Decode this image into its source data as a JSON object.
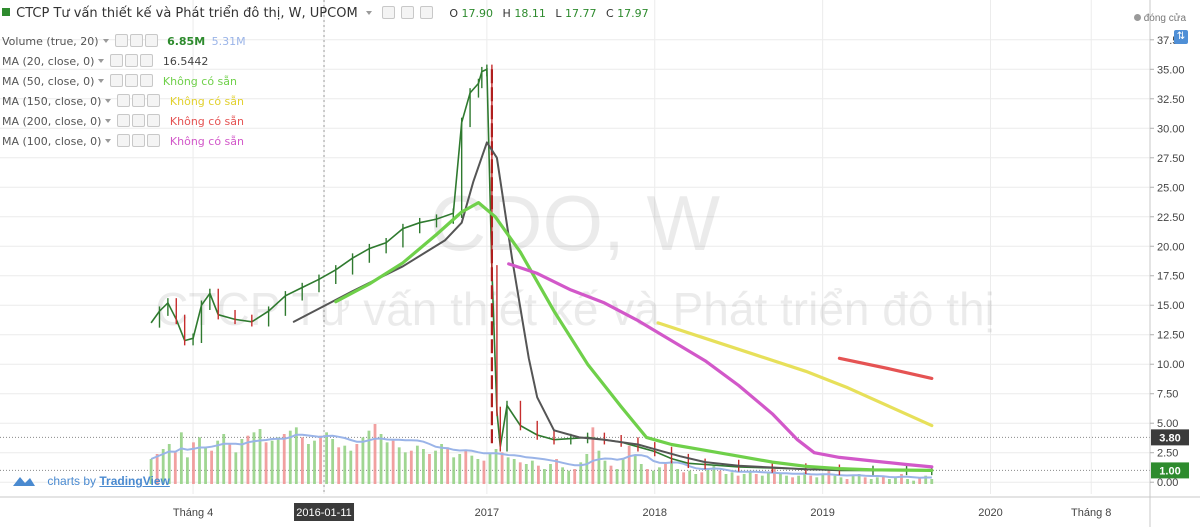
{
  "header": {
    "title": "CTCP Tư vấn thiết kế và Phát triển đô thị, W, UPCOM",
    "ohlc": [
      {
        "label": "O",
        "value": "17.90"
      },
      {
        "label": "H",
        "value": "18.11"
      },
      {
        "label": "L",
        "value": "17.77"
      },
      {
        "label": "C",
        "value": "17.97"
      }
    ],
    "status": "đóng cửa"
  },
  "legend": [
    {
      "name": "Volume (true, 20)",
      "value": "6.85M",
      "value2": "5.31M",
      "color": "#2e8b2e",
      "color2": "#9ab4e8"
    },
    {
      "name": "MA (20, close, 0)",
      "value": "16.5442",
      "color": "#444444"
    },
    {
      "name": "MA (50, close, 0)",
      "value": "Không có sẵn",
      "color": "#6fd04a"
    },
    {
      "name": "MA (150, close, 0)",
      "value": "Không có sẵn",
      "color": "#e7e05a"
    },
    {
      "name": "MA (200, close, 0)",
      "value": "Không có sẵn",
      "color": "#e55353"
    },
    {
      "name": "MA (100, close, 0)",
      "value": "Không có sẵn",
      "color": "#d258c9"
    }
  ],
  "watermark": {
    "symbol": "CDO, W",
    "name": "CTCP Tư vấn thiết kế và Phát triển đô thị"
  },
  "brand": {
    "prefix": "charts by",
    "link": "TradingView"
  },
  "chart_data": {
    "type": "line",
    "title": "CTCP Tư vấn thiết kế và Phát triển đô thị, W, UPCOM",
    "y_ticks": [
      "37.50",
      "35.00",
      "32.50",
      "30.00",
      "27.50",
      "25.00",
      "22.50",
      "20.00",
      "17.50",
      "15.00",
      "12.50",
      "10.00",
      "7.50",
      "5.00",
      "2.50",
      "0.00"
    ],
    "ylim": [
      -1.0,
      38.5
    ],
    "x_ticks": [
      {
        "label": "Tháng 4",
        "t": 0.25
      },
      {
        "label": "2016-01-11",
        "t": 1.03
      },
      {
        "label": "2017",
        "t": 2.0
      },
      {
        "label": "2018",
        "t": 3.0
      },
      {
        "label": "2019",
        "t": 4.0
      },
      {
        "label": "2020",
        "t": 5.0
      },
      {
        "label": "Tháng 8",
        "t": 5.6
      }
    ],
    "x_highlight": "2016-01-11",
    "xlim": [
      -0.9,
      5.95
    ],
    "price_markers": [
      {
        "label": "3.80",
        "value": 3.8
      },
      {
        "label": "1.00",
        "value": 1.0
      }
    ],
    "price_path": [
      [
        0.0,
        13.5
      ],
      [
        0.05,
        14.5
      ],
      [
        0.1,
        15.2
      ],
      [
        0.15,
        13.8
      ],
      [
        0.2,
        12.0
      ],
      [
        0.25,
        12.2
      ],
      [
        0.3,
        15.0
      ],
      [
        0.35,
        16.0
      ],
      [
        0.4,
        14.2
      ],
      [
        0.5,
        13.8
      ],
      [
        0.6,
        13.6
      ],
      [
        0.7,
        14.5
      ],
      [
        0.8,
        15.8
      ],
      [
        0.9,
        16.5
      ],
      [
        1.0,
        17.2
      ],
      [
        1.1,
        18.0
      ],
      [
        1.2,
        19.0
      ],
      [
        1.3,
        19.8
      ],
      [
        1.4,
        20.3
      ],
      [
        1.5,
        21.5
      ],
      [
        1.6,
        22.0
      ],
      [
        1.7,
        22.3
      ],
      [
        1.8,
        22.8
      ],
      [
        1.85,
        30.5
      ],
      [
        1.9,
        33.0
      ],
      [
        1.95,
        33.8
      ],
      [
        1.97,
        34.8
      ],
      [
        2.0,
        35.0
      ],
      [
        2.03,
        18.0
      ],
      [
        2.06,
        6.0
      ],
      [
        2.08,
        3.0
      ],
      [
        2.12,
        6.5
      ],
      [
        2.2,
        4.8
      ],
      [
        2.3,
        4.0
      ],
      [
        2.4,
        3.6
      ],
      [
        2.5,
        3.7
      ],
      [
        2.6,
        3.8
      ],
      [
        2.7,
        3.6
      ],
      [
        2.8,
        3.4
      ],
      [
        2.9,
        3.0
      ],
      [
        3.0,
        2.6
      ],
      [
        3.1,
        2.0
      ],
      [
        3.2,
        1.6
      ],
      [
        3.3,
        1.5
      ],
      [
        3.5,
        1.3
      ],
      [
        3.7,
        1.2
      ],
      [
        3.9,
        1.1
      ],
      [
        4.1,
        1.0
      ],
      [
        4.3,
        1.0
      ],
      [
        4.5,
        1.0
      ],
      [
        4.65,
        1.0
      ]
    ],
    "volume_values": [
      1.5,
      1.8,
      2.1,
      2.4,
      1.9,
      3.1,
      1.6,
      2.5,
      2.8,
      2.2,
      2.0,
      2.6,
      3.0,
      2.4,
      1.9,
      2.7,
      2.9,
      3.1,
      3.3,
      2.5,
      2.6,
      2.8,
      3.0,
      3.2,
      3.4,
      2.8,
      2.4,
      2.6,
      2.9,
      3.1,
      2.7,
      2.2,
      2.3,
      2.0,
      2.4,
      2.8,
      3.2,
      3.6,
      3.0,
      2.5,
      2.6,
      2.2,
      1.9,
      2.0,
      2.3,
      2.1,
      1.8,
      2.0,
      2.4,
      2.2,
      1.6,
      1.8,
      2.0,
      1.7,
      1.5,
      1.4,
      1.8,
      2.1,
      1.9,
      1.6,
      1.5,
      1.3,
      1.2,
      1.4,
      1.1,
      0.9,
      1.2,
      1.5,
      1.0,
      0.8,
      0.9,
      1.3,
      1.8,
      3.4,
      2.0,
      1.4,
      1.1,
      0.9,
      1.5,
      2.3,
      1.7,
      1.2,
      0.9,
      0.8,
      1.0,
      1.2,
      1.4,
      0.9,
      0.7,
      0.8,
      0.6,
      0.7,
      0.9,
      1.1,
      0.8,
      0.6,
      0.7,
      0.5,
      0.6,
      0.8,
      0.6,
      0.5,
      0.7,
      0.9,
      0.6,
      0.5,
      0.4,
      0.5,
      0.7,
      0.5,
      0.4,
      0.6,
      0.8,
      0.5,
      0.4,
      0.3,
      0.5,
      0.6,
      0.4,
      0.3,
      0.4,
      0.5,
      0.3,
      0.4,
      0.6,
      0.3,
      0.2,
      0.4,
      0.5,
      0.3
    ],
    "series": [
      {
        "name": "MA (20, close, 0)",
        "color": "#555555",
        "values": [
          [
            0.85,
            13.6
          ],
          [
            1.2,
            16.2
          ],
          [
            1.5,
            18.3
          ],
          [
            1.75,
            20.5
          ],
          [
            1.85,
            22.0
          ],
          [
            1.92,
            25.5
          ],
          [
            2.0,
            28.8
          ],
          [
            2.06,
            27.5
          ],
          [
            2.15,
            19.0
          ],
          [
            2.25,
            10.5
          ],
          [
            2.3,
            7.2
          ],
          [
            2.4,
            4.4
          ],
          [
            2.55,
            3.8
          ],
          [
            2.7,
            3.6
          ],
          [
            2.9,
            3.2
          ],
          [
            3.0,
            2.8
          ],
          [
            3.15,
            2.2
          ],
          [
            3.3,
            1.7
          ],
          [
            3.5,
            1.4
          ],
          [
            3.7,
            1.25
          ],
          [
            3.9,
            1.1
          ],
          [
            4.1,
            1.05
          ],
          [
            4.4,
            1.0
          ],
          [
            4.65,
            1.0
          ]
        ]
      },
      {
        "name": "MA (50, close, 0)",
        "color": "#6fd04a",
        "values": [
          [
            1.1,
            15.3
          ],
          [
            1.3,
            16.8
          ],
          [
            1.5,
            18.6
          ],
          [
            1.7,
            21.0
          ],
          [
            1.85,
            22.9
          ],
          [
            1.95,
            23.7
          ],
          [
            2.05,
            22.5
          ],
          [
            2.2,
            19.5
          ],
          [
            2.4,
            14.5
          ],
          [
            2.6,
            10.0
          ],
          [
            2.8,
            6.4
          ],
          [
            2.95,
            3.8
          ],
          [
            3.1,
            3.2
          ],
          [
            3.3,
            2.7
          ],
          [
            3.5,
            2.2
          ],
          [
            3.7,
            1.7
          ],
          [
            3.9,
            1.35
          ],
          [
            4.1,
            1.15
          ],
          [
            4.3,
            1.05
          ],
          [
            4.65,
            1.0
          ]
        ]
      },
      {
        "name": "MA (100, close, 0)",
        "color": "#d258c9",
        "values": [
          [
            2.13,
            18.5
          ],
          [
            2.3,
            17.7
          ],
          [
            2.5,
            16.3
          ],
          [
            2.7,
            15.2
          ],
          [
            2.9,
            13.7
          ],
          [
            3.1,
            12.0
          ],
          [
            3.3,
            10.3
          ],
          [
            3.5,
            8.2
          ],
          [
            3.7,
            5.8
          ],
          [
            3.85,
            3.6
          ],
          [
            3.95,
            2.5
          ],
          [
            4.1,
            2.1
          ],
          [
            4.3,
            1.8
          ],
          [
            4.5,
            1.5
          ],
          [
            4.65,
            1.3
          ]
        ]
      },
      {
        "name": "MA (150, close, 0)",
        "color": "#e7e05a",
        "values": [
          [
            3.02,
            13.5
          ],
          [
            3.3,
            12.2
          ],
          [
            3.6,
            10.8
          ],
          [
            3.9,
            9.4
          ],
          [
            4.15,
            8.0
          ],
          [
            4.4,
            6.4
          ],
          [
            4.65,
            4.8
          ]
        ]
      },
      {
        "name": "MA (200, close, 0)",
        "color": "#e55353",
        "values": [
          [
            4.1,
            10.5
          ],
          [
            4.4,
            9.6
          ],
          [
            4.65,
            8.8
          ]
        ]
      }
    ]
  }
}
